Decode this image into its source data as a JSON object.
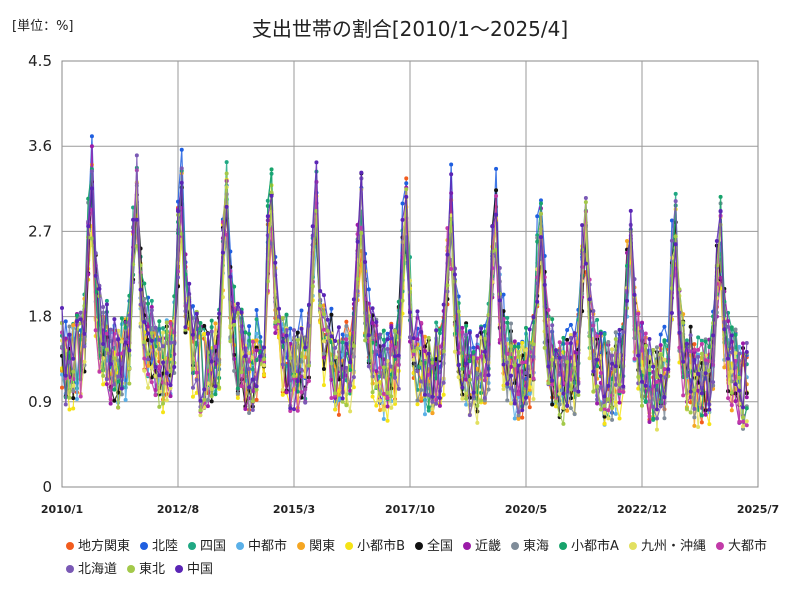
{
  "chart_data": {
    "type": "line",
    "title": "支出世帯の割合[2010/1～2025/4]",
    "unit_label": "[単位：%]",
    "xlabel": "",
    "ylabel": "",
    "x_start": "2010-01",
    "x_end": "2025-04",
    "ylim": [
      0,
      4.5
    ],
    "yticks": [
      "0",
      "0.9",
      "1.8",
      "2.7",
      "3.6",
      "4.5"
    ],
    "yticks_values": [
      0,
      0.9,
      1.8,
      2.7,
      3.6,
      4.5
    ],
    "xticks": [
      "2010/1",
      "2012/8",
      "2015/3",
      "2017/10",
      "2020/5",
      "2022/12",
      "2025/7"
    ],
    "grid": true,
    "legend_position": "bottom",
    "seasonal_base": [
      1.5,
      1.3,
      1.3,
      1.3,
      1.4,
      1.4,
      1.6,
      2.6,
      3.1,
      2.1,
      1.7,
      1.5
    ],
    "series": [
      {
        "name": "地方関東",
        "color": "#f25c1e",
        "scale": 1.0
      },
      {
        "name": "北陸",
        "color": "#1f5fe0",
        "scale": 1.08
      },
      {
        "name": "四国",
        "color": "#1fa883",
        "scale": 1.05
      },
      {
        "name": "中都市",
        "color": "#5ab0e8",
        "scale": 0.98
      },
      {
        "name": "関東",
        "color": "#f5a623",
        "scale": 0.97
      },
      {
        "name": "小都市B",
        "color": "#f5e316",
        "scale": 0.95
      },
      {
        "name": "全国",
        "color": "#111111",
        "scale": 1.0
      },
      {
        "name": "近畿",
        "color": "#9b1ba8",
        "scale": 1.02
      },
      {
        "name": "東海",
        "color": "#7f8c99",
        "scale": 0.99
      },
      {
        "name": "小都市A",
        "color": "#17a36b",
        "scale": 1.03
      },
      {
        "name": "九州・沖縄",
        "color": "#e2e060",
        "scale": 0.96
      },
      {
        "name": "大都市",
        "color": "#c23aa8",
        "scale": 0.98
      },
      {
        "name": "北海道",
        "color": "#7a59b5",
        "scale": 1.01
      },
      {
        "name": "東北",
        "color": "#a3c94a",
        "scale": 0.97
      },
      {
        "name": "中国",
        "color": "#5a25b5",
        "scale": 1.04
      }
    ]
  }
}
